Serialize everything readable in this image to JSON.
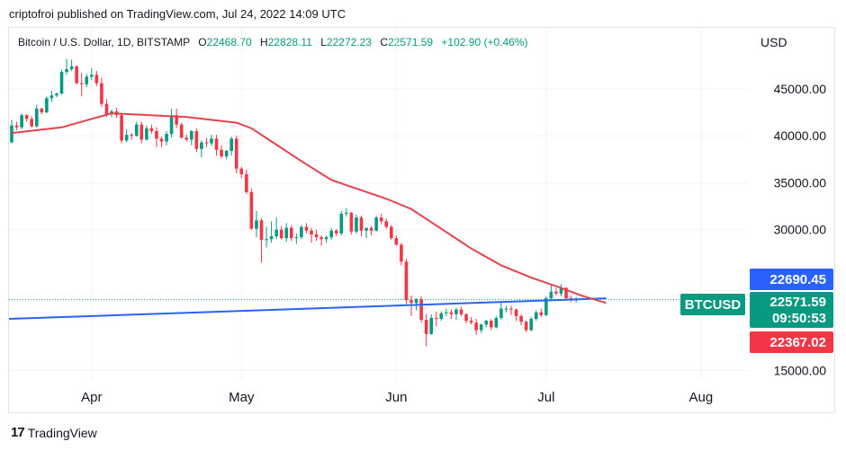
{
  "header": {
    "published": "criptofroi published on TradingView.com, Jul 24, 2022 14:09 UTC"
  },
  "legend": {
    "symbol": "Bitcoin / U.S. Dollar, 1D, BITSTAMP",
    "o_label": "O",
    "o_value": "22468.70",
    "h_label": "H",
    "h_value": "22828.11",
    "l_label": "L",
    "l_value": "22272.23",
    "c_label": "C",
    "c_value": "22571.59",
    "change": "+102.90 (+0.46%)"
  },
  "footer": {
    "brand": "TradingView",
    "logo_text": "17"
  },
  "colors": {
    "up": "#089981",
    "down": "#f23645",
    "ma": "#e8414c",
    "trend": "#2962ff",
    "last_price_bg": "#089981",
    "high_label_bg": "#2962ff",
    "low_label_bg": "#f23645"
  },
  "chart_data": {
    "type": "candlestick",
    "currency": "USD",
    "ylim": [
      14000,
      51500
    ],
    "y_ticks": [
      15000,
      30000,
      35000,
      40000,
      45000
    ],
    "y_tick_labels": [
      "15000.00",
      "30000.00",
      "35000.00",
      "40000.00",
      "45000.00"
    ],
    "x_start": "2022-03-16",
    "x_ticks": [
      {
        "date": "2022-04-01",
        "label": "Apr"
      },
      {
        "date": "2022-05-01",
        "label": "May"
      },
      {
        "date": "2022-06-01",
        "label": "Jun"
      },
      {
        "date": "2022-07-01",
        "label": "Jul"
      },
      {
        "date": "2022-08-01",
        "label": "Aug"
      }
    ],
    "candles_daily_ohlc_from_2022_03_16": [
      [
        39300,
        41700,
        39200,
        41100
      ],
      [
        41100,
        41500,
        40600,
        40900
      ],
      [
        40900,
        42400,
        40700,
        42200
      ],
      [
        42200,
        42300,
        41500,
        41800
      ],
      [
        41800,
        42100,
        40900,
        41000
      ],
      [
        41000,
        43300,
        40900,
        42900
      ],
      [
        42900,
        43000,
        42300,
        42500
      ],
      [
        42500,
        44200,
        42400,
        44000
      ],
      [
        44000,
        44800,
        43600,
        44300
      ],
      [
        44300,
        44600,
        44100,
        44500
      ],
      [
        44500,
        47000,
        44400,
        46800
      ],
      [
        46800,
        48200,
        46500,
        47100
      ],
      [
        47100,
        48100,
        46900,
        47400
      ],
      [
        47400,
        47500,
        45500,
        45600
      ],
      [
        45600,
        46700,
        44200,
        45500
      ],
      [
        45500,
        46600,
        45200,
        46300
      ],
      [
        46300,
        47200,
        46000,
        46500
      ],
      [
        46500,
        46900,
        45300,
        45600
      ],
      [
        45600,
        46200,
        43100,
        43400
      ],
      [
        43400,
        43900,
        42000,
        42300
      ],
      [
        42300,
        42800,
        42000,
        42600
      ],
      [
        42600,
        43000,
        41900,
        42200
      ],
      [
        42200,
        42400,
        39200,
        39500
      ],
      [
        39500,
        40700,
        39300,
        40100
      ],
      [
        40100,
        40300,
        39600,
        40000
      ],
      [
        40000,
        41500,
        39900,
        41200
      ],
      [
        41200,
        41500,
        39200,
        39600
      ],
      [
        39600,
        41100,
        39500,
        40800
      ],
      [
        40800,
        41200,
        40200,
        40500
      ],
      [
        40500,
        40900,
        38800,
        39700
      ],
      [
        39700,
        39900,
        38800,
        39400
      ],
      [
        39400,
        40500,
        39000,
        40200
      ],
      [
        40200,
        42900,
        39800,
        42200
      ],
      [
        42200,
        42900,
        40800,
        41200
      ],
      [
        41200,
        41400,
        39700,
        39800
      ],
      [
        39800,
        40100,
        39400,
        39600
      ],
      [
        39600,
        40600,
        39000,
        40500
      ],
      [
        40500,
        40800,
        38300,
        38600
      ],
      [
        38600,
        39500,
        37700,
        39300
      ],
      [
        39300,
        39800,
        38800,
        39200
      ],
      [
        39200,
        40100,
        38900,
        39700
      ],
      [
        39700,
        40100,
        37900,
        38500
      ],
      [
        38500,
        39000,
        37600,
        37800
      ],
      [
        37800,
        38500,
        37500,
        38400
      ],
      [
        38400,
        39900,
        37900,
        39700
      ],
      [
        39700,
        40000,
        36000,
        36500
      ],
      [
        36500,
        36700,
        35500,
        35900
      ],
      [
        35900,
        36400,
        33800,
        34000
      ],
      [
        34000,
        34400,
        30000,
        30100
      ],
      [
        30100,
        32000,
        29200,
        31000
      ],
      [
        31000,
        31200,
        26500,
        28900
      ],
      [
        28900,
        30300,
        28100,
        29000
      ],
      [
        29000,
        30900,
        28600,
        29300
      ],
      [
        29300,
        31300,
        29000,
        30000
      ],
      [
        30000,
        30400,
        29000,
        29100
      ],
      [
        29100,
        30700,
        28700,
        30200
      ],
      [
        30200,
        30500,
        28800,
        29100
      ],
      [
        29100,
        29600,
        28500,
        29200
      ],
      [
        29200,
        30500,
        29000,
        30300
      ],
      [
        30300,
        30700,
        29600,
        29900
      ],
      [
        29900,
        30200,
        28600,
        29500
      ],
      [
        29500,
        30000,
        28800,
        29200
      ],
      [
        29200,
        29400,
        28300,
        29000
      ],
      [
        29000,
        29400,
        28600,
        29200
      ],
      [
        29200,
        30200,
        28900,
        29900
      ],
      [
        29900,
        30100,
        29300,
        29600
      ],
      [
        29600,
        32000,
        29400,
        31700
      ],
      [
        31700,
        32300,
        31400,
        31800
      ],
      [
        31800,
        31900,
        29500,
        29800
      ],
      [
        29800,
        31600,
        29600,
        31300
      ],
      [
        31300,
        31500,
        29300,
        29900
      ],
      [
        29900,
        30200,
        29100,
        30200
      ],
      [
        30200,
        30400,
        29400,
        29900
      ],
      [
        29900,
        31500,
        29800,
        31300
      ],
      [
        31300,
        31700,
        30600,
        30900
      ],
      [
        30900,
        31200,
        30100,
        30300
      ],
      [
        30300,
        30500,
        28900,
        29100
      ],
      [
        29100,
        29400,
        28300,
        28400
      ],
      [
        28400,
        28600,
        26200,
        26600
      ],
      [
        26600,
        26900,
        22100,
        22500
      ],
      [
        22500,
        23000,
        20800,
        22200
      ],
      [
        22200,
        22700,
        21400,
        22600
      ],
      [
        22600,
        22900,
        20100,
        20400
      ],
      [
        20400,
        21000,
        17600,
        18900
      ],
      [
        18900,
        21000,
        18800,
        20600
      ],
      [
        20600,
        21300,
        19700,
        20500
      ],
      [
        20500,
        21300,
        20300,
        21100
      ],
      [
        21100,
        21600,
        20800,
        21200
      ],
      [
        21200,
        21500,
        20500,
        21000
      ],
      [
        21000,
        21700,
        20400,
        21500
      ],
      [
        21500,
        21800,
        20800,
        21000
      ],
      [
        21000,
        21100,
        20000,
        20300
      ],
      [
        20300,
        20700,
        19900,
        20100
      ],
      [
        20100,
        20500,
        18800,
        19300
      ],
      [
        19300,
        20000,
        19000,
        19900
      ],
      [
        19900,
        20400,
        19600,
        20300
      ],
      [
        20300,
        20500,
        19300,
        19600
      ],
      [
        19600,
        20800,
        19500,
        20600
      ],
      [
        20600,
        22400,
        20400,
        21600
      ],
      [
        21600,
        21900,
        21200,
        21600
      ],
      [
        21600,
        21900,
        20900,
        21500
      ],
      [
        21500,
        21600,
        20300,
        20800
      ],
      [
        20800,
        21000,
        19800,
        20200
      ],
      [
        20200,
        20300,
        19100,
        19300
      ],
      [
        19300,
        20700,
        19200,
        20500
      ],
      [
        20500,
        21400,
        20300,
        21200
      ],
      [
        21200,
        21600,
        20700,
        20900
      ],
      [
        20900,
        22900,
        20800,
        22700
      ],
      [
        22700,
        24200,
        22400,
        23400
      ],
      [
        23400,
        23800,
        23000,
        23200
      ],
      [
        23200,
        24200,
        22900,
        23800
      ],
      [
        23800,
        23900,
        22500,
        22700
      ],
      [
        22700,
        23000,
        22300,
        22468
      ],
      [
        22468.7,
        22828.11,
        22272.23,
        22571.59
      ]
    ],
    "moving_average": [
      [
        0,
        40300
      ],
      [
        10,
        40900
      ],
      [
        20,
        42400
      ],
      [
        35,
        42000
      ],
      [
        45,
        41400
      ],
      [
        48,
        40800
      ],
      [
        52,
        39400
      ],
      [
        58,
        37300
      ],
      [
        64,
        35300
      ],
      [
        70,
        34200
      ],
      [
        75,
        33300
      ],
      [
        80,
        32200
      ],
      [
        86,
        30100
      ],
      [
        92,
        28000
      ],
      [
        98,
        26200
      ],
      [
        104,
        24900
      ],
      [
        110,
        23800
      ],
      [
        114,
        23000
      ],
      [
        119,
        22200
      ]
    ],
    "trend_line": [
      [
        0,
        20500
      ],
      [
        119,
        22690
      ]
    ],
    "last_price_line": 22571.59,
    "price_labels": {
      "high": "22690.45",
      "close": "22571.59",
      "countdown": "09:50:53",
      "low": "22367.02",
      "symbol": "BTCUSD"
    }
  }
}
